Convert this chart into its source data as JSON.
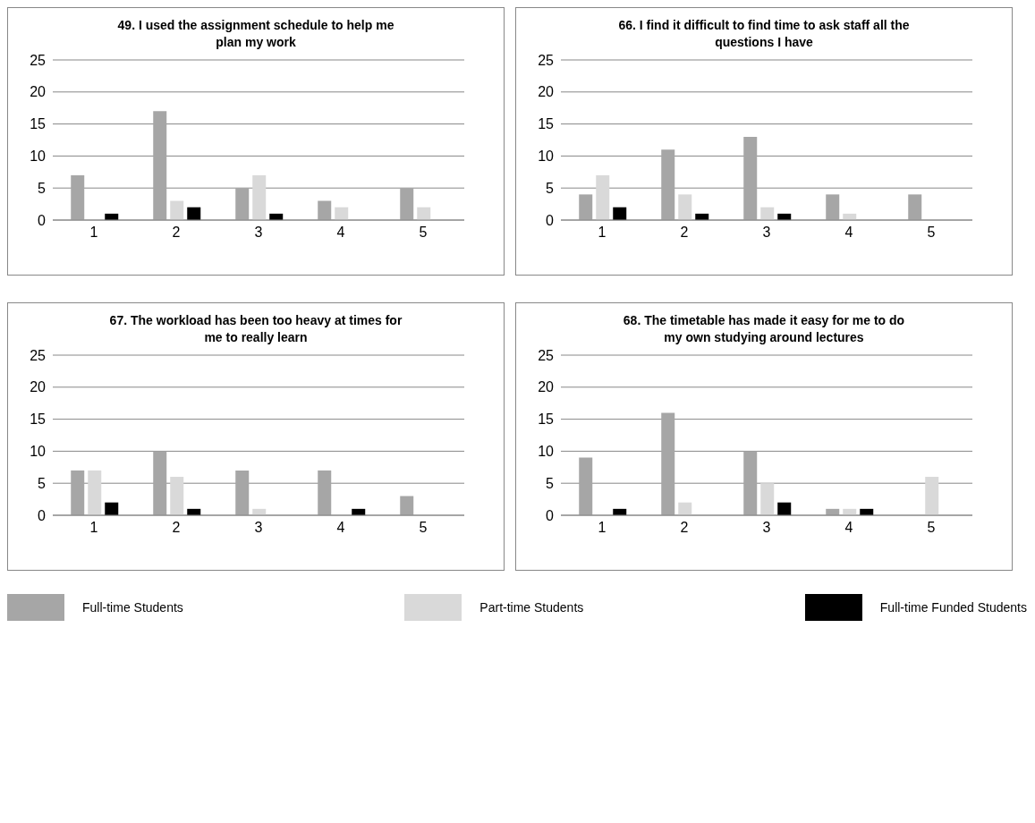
{
  "chart_data": [
    {
      "type": "bar",
      "title": "49. I used the assignment schedule to help me plan my work",
      "categories": [
        "1",
        "2",
        "3",
        "4",
        "5"
      ],
      "series": [
        {
          "color": "#a6a6a6",
          "values": [
            7,
            17,
            5,
            3,
            5
          ]
        },
        {
          "color": "#d9d9d9",
          "values": [
            0,
            3,
            7,
            2,
            2
          ]
        },
        {
          "color": "#000000",
          "values": [
            1,
            2,
            1,
            0,
            0
          ]
        }
      ],
      "ylim": [
        0,
        25
      ],
      "yticks": [
        0,
        5,
        10,
        15,
        20,
        25
      ],
      "grid": "y"
    },
    {
      "type": "bar",
      "title": "66. I find it difficult to find time to ask staff all the questions I have",
      "categories": [
        "1",
        "2",
        "3",
        "4",
        "5"
      ],
      "series": [
        {
          "color": "#a6a6a6",
          "values": [
            4,
            11,
            13,
            4,
            4
          ]
        },
        {
          "color": "#d9d9d9",
          "values": [
            7,
            4,
            2,
            1,
            0
          ]
        },
        {
          "color": "#000000",
          "values": [
            2,
            1,
            1,
            0,
            0
          ]
        }
      ],
      "ylim": [
        0,
        25
      ],
      "yticks": [
        0,
        5,
        10,
        15,
        20,
        25
      ],
      "grid": "y"
    },
    {
      "type": "bar",
      "title": "67. The workload has been too heavy at times for me to really learn",
      "categories": [
        "1",
        "2",
        "3",
        "4",
        "5"
      ],
      "series": [
        {
          "color": "#a6a6a6",
          "values": [
            7,
            10,
            7,
            7,
            3
          ]
        },
        {
          "color": "#d9d9d9",
          "values": [
            7,
            6,
            1,
            0,
            0
          ]
        },
        {
          "color": "#000000",
          "values": [
            2,
            1,
            0,
            1,
            0
          ]
        }
      ],
      "ylim": [
        0,
        25
      ],
      "yticks": [
        0,
        5,
        10,
        15,
        20,
        25
      ],
      "grid": "y"
    },
    {
      "type": "bar",
      "title": "68. The timetable has made it easy for me to do my own studying around lectures",
      "categories": [
        "1",
        "2",
        "3",
        "4",
        "5"
      ],
      "series": [
        {
          "name": "Full-time Students",
          "color": "#a6a6a6",
          "values": [
            9,
            16,
            10,
            1,
            0
          ]
        },
        {
          "name": "Part-time Students",
          "color": "#d9d9d9",
          "values": [
            0,
            2,
            5,
            1,
            6
          ]
        },
        {
          "name": "Full-time Funded Students",
          "color": "#000000",
          "values": [
            1,
            0,
            2,
            1,
            0
          ]
        }
      ],
      "ylim": [
        0,
        25
      ],
      "yticks": [
        0,
        5,
        10,
        15,
        20,
        25
      ],
      "grid": "y",
      "legend": "bottom"
    }
  ]
}
